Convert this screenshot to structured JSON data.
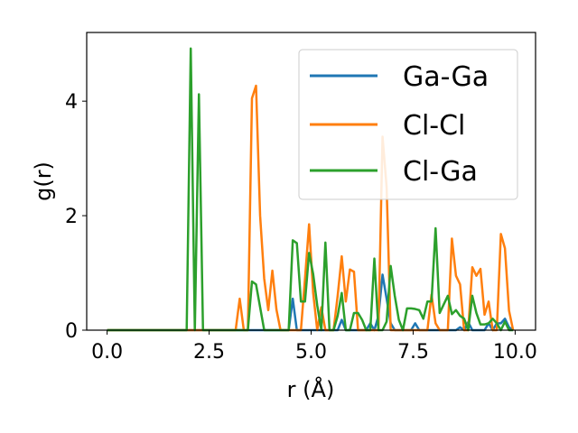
{
  "chart_data": {
    "type": "line",
    "xlabel": "r (Å)",
    "ylabel": "g(r)",
    "xlim": [
      -0.5,
      10.5
    ],
    "ylim": [
      0,
      5.2
    ],
    "xticks": [
      0.0,
      2.5,
      5.0,
      7.5,
      10.0
    ],
    "xtick_labels": [
      "0.0",
      "2.5",
      "5.0",
      "7.5",
      "10.0"
    ],
    "yticks": [
      0,
      2,
      4
    ],
    "ytick_labels": [
      "0",
      "2",
      "4"
    ],
    "grid": false,
    "legend_position": "upper-right",
    "series": [
      {
        "name": "Ga-Ga",
        "color": "#1f77b4",
        "x": [
          0.0,
          4.45,
          4.55,
          4.65,
          5.65,
          5.75,
          5.85,
          6.35,
          6.45,
          6.55,
          6.65,
          6.75,
          6.85,
          6.95,
          7.05,
          7.45,
          7.55,
          7.65,
          8.55,
          8.65,
          8.75,
          8.85,
          8.95,
          9.05,
          9.25,
          9.35,
          9.45,
          9.55,
          9.65,
          9.75,
          9.85,
          9.95
        ],
        "y": [
          0.0,
          0.0,
          0.55,
          0.0,
          0.0,
          0.18,
          0.0,
          0.0,
          0.12,
          0.0,
          0.25,
          0.97,
          0.55,
          0.12,
          0.0,
          0.0,
          0.12,
          0.0,
          0.0,
          0.05,
          0.0,
          0.14,
          0.0,
          0.0,
          0.0,
          0.12,
          0.0,
          0.12,
          0.12,
          0.2,
          0.05,
          0.0
        ]
      },
      {
        "name": "Cl-Cl",
        "color": "#ff7f0e",
        "x": [
          0.0,
          3.15,
          3.25,
          3.35,
          3.45,
          3.55,
          3.65,
          3.75,
          3.85,
          3.95,
          4.05,
          4.15,
          4.25,
          4.35,
          4.45,
          4.75,
          4.85,
          4.95,
          5.05,
          5.15,
          5.25,
          5.35,
          5.45,
          5.55,
          5.65,
          5.75,
          5.85,
          5.95,
          6.05,
          6.15,
          6.25,
          6.35,
          6.45,
          6.55,
          6.65,
          6.75,
          6.85,
          6.95,
          7.05,
          7.15,
          7.25,
          7.35,
          7.45,
          7.55,
          7.65,
          7.75,
          7.85,
          7.95,
          8.05,
          8.15,
          8.25,
          8.35,
          8.45,
          8.55,
          8.65,
          8.75,
          8.85,
          8.95,
          9.05,
          9.15,
          9.25,
          9.35,
          9.45,
          9.55,
          9.65,
          9.75,
          9.85,
          9.95
        ],
        "y": [
          0.0,
          0.0,
          0.55,
          0.0,
          0.0,
          4.05,
          4.27,
          2.0,
          0.9,
          0.35,
          1.04,
          0.36,
          0.0,
          0.0,
          0.0,
          0.0,
          0.9,
          1.85,
          0.65,
          0.0,
          0.4,
          0.0,
          0.0,
          0.0,
          0.6,
          1.29,
          0.5,
          1.06,
          1.02,
          0.0,
          0.0,
          0.0,
          0.0,
          0.0,
          0.0,
          3.38,
          2.5,
          0.0,
          0.0,
          0.0,
          0.0,
          0.0,
          0.0,
          0.0,
          0.0,
          0.0,
          0.0,
          0.62,
          0.12,
          0.0,
          0.0,
          0.0,
          1.6,
          0.95,
          0.8,
          0.0,
          0.0,
          1.1,
          0.95,
          1.07,
          0.27,
          0.5,
          0.0,
          0.0,
          1.68,
          1.43,
          0.34,
          0.0
        ]
      },
      {
        "name": "Cl-Ga",
        "color": "#2ca02c",
        "x": [
          0.0,
          1.95,
          2.05,
          2.15,
          2.25,
          2.35,
          2.45,
          3.45,
          3.55,
          3.65,
          3.75,
          3.85,
          4.45,
          4.55,
          4.65,
          4.75,
          4.85,
          4.95,
          5.05,
          5.15,
          5.25,
          5.35,
          5.45,
          5.55,
          5.65,
          5.75,
          5.85,
          5.95,
          6.05,
          6.15,
          6.25,
          6.35,
          6.45,
          6.55,
          6.65,
          6.75,
          6.85,
          6.95,
          7.05,
          7.15,
          7.25,
          7.35,
          7.45,
          7.55,
          7.65,
          7.75,
          7.85,
          7.95,
          8.05,
          8.15,
          8.25,
          8.35,
          8.45,
          8.55,
          8.65,
          8.75,
          8.85,
          8.95,
          9.05,
          9.15,
          9.25,
          9.35,
          9.45,
          9.55,
          9.65,
          9.75,
          9.85,
          9.95
        ],
        "y": [
          0.0,
          0.0,
          4.92,
          0.0,
          4.12,
          0.0,
          0.0,
          0.0,
          0.85,
          0.8,
          0.4,
          0.0,
          0.0,
          1.57,
          1.52,
          0.5,
          0.5,
          1.35,
          0.98,
          0.43,
          0.0,
          1.53,
          0.0,
          0.0,
          0.25,
          0.65,
          0.0,
          0.0,
          0.3,
          0.3,
          0.18,
          0.0,
          0.0,
          1.25,
          0.0,
          0.0,
          0.15,
          1.12,
          0.6,
          0.18,
          0.0,
          0.38,
          0.38,
          0.37,
          0.35,
          0.2,
          0.5,
          0.5,
          1.78,
          0.3,
          0.45,
          0.6,
          0.28,
          0.35,
          0.25,
          0.2,
          0.0,
          0.6,
          0.3,
          0.1,
          0.1,
          0.12,
          0.2,
          0.12,
          0.0,
          0.15,
          0.0,
          0.0
        ]
      }
    ]
  }
}
